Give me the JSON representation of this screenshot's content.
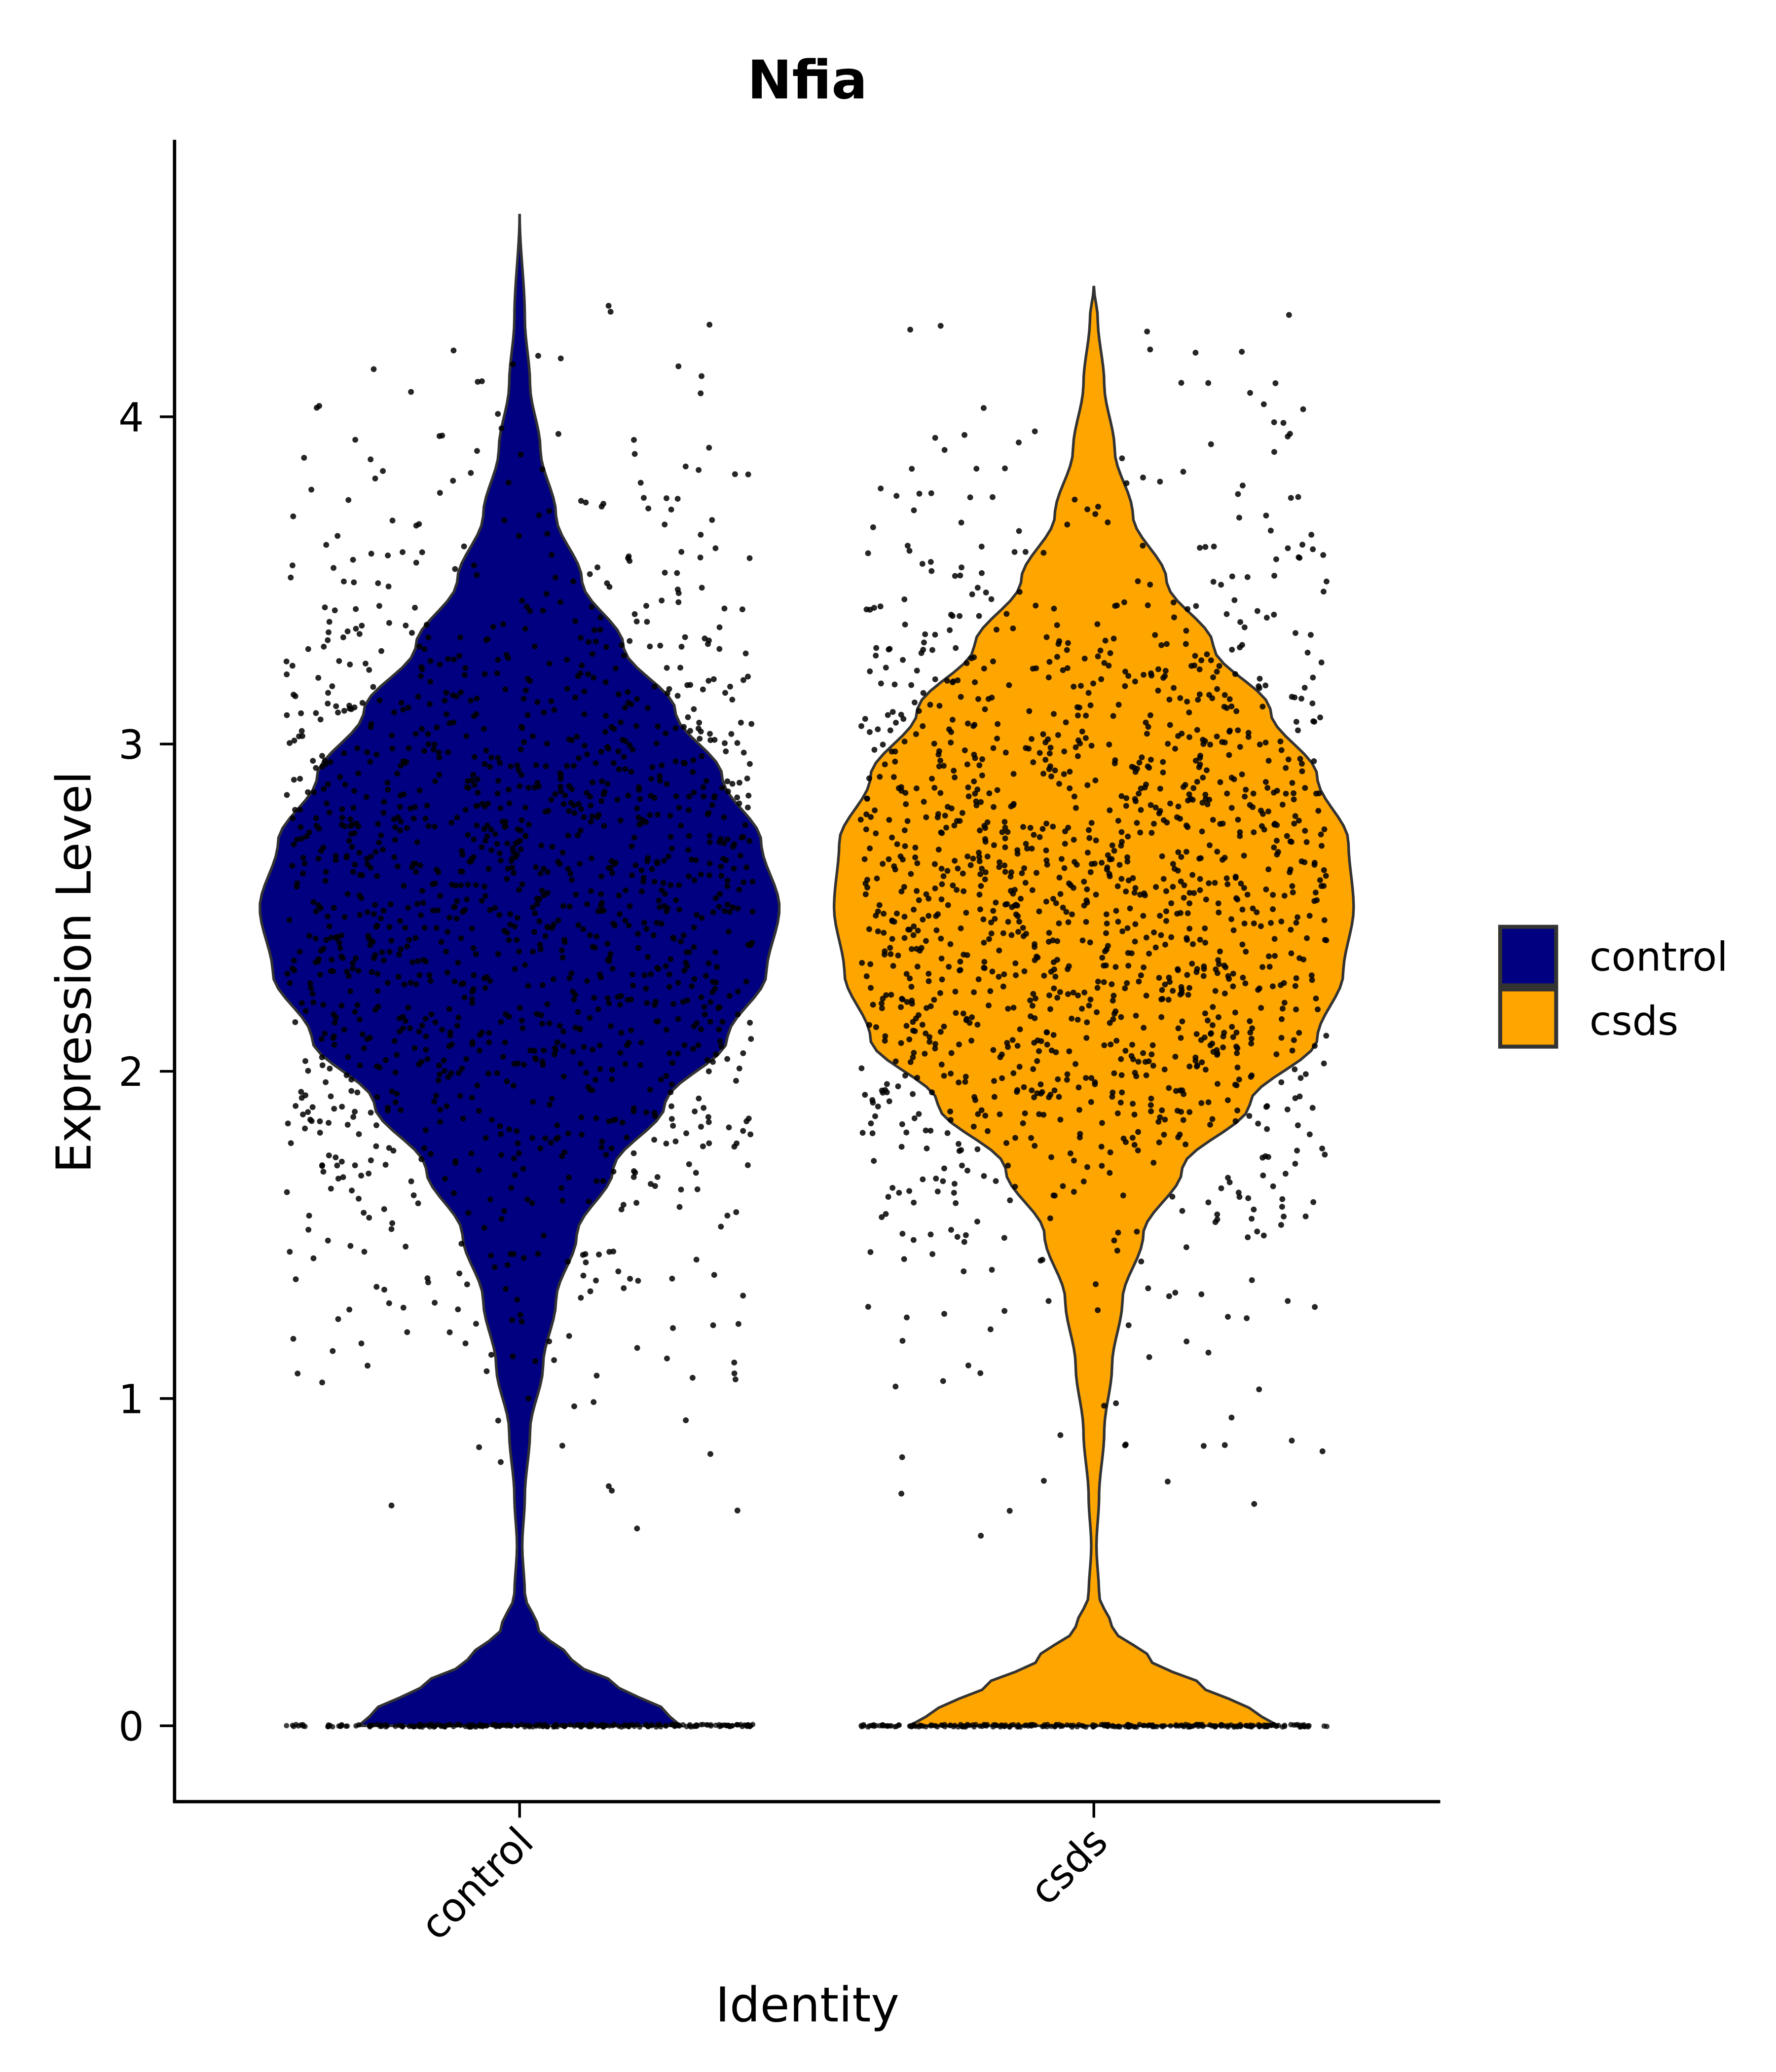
{
  "chart_data": {
    "type": "violin",
    "title": "Nfia",
    "xlabel": "Identity",
    "ylabel": "Expression Level",
    "ylim": [
      -0.23,
      4.85
    ],
    "yticks": [
      0,
      1,
      2,
      3,
      4
    ],
    "ytick_labels": [
      "0",
      "1",
      "2",
      "3",
      "4"
    ],
    "categories": [
      "control",
      "csds"
    ],
    "grid": false,
    "legend": {
      "position": "right",
      "entries": [
        {
          "label": "control",
          "color": "#000080"
        },
        {
          "label": "csds",
          "color": "#FFA500"
        }
      ]
    },
    "series": [
      {
        "name": "control",
        "color": "#000080",
        "max_value": 4.62,
        "median_peak": 2.5,
        "density_profile": [
          [
            0.0,
            0.62
          ],
          [
            0.05,
            0.55
          ],
          [
            0.12,
            0.38
          ],
          [
            0.2,
            0.2
          ],
          [
            0.3,
            0.07
          ],
          [
            0.4,
            0.02
          ],
          [
            0.55,
            0.01
          ],
          [
            0.7,
            0.02
          ],
          [
            0.9,
            0.04
          ],
          [
            1.1,
            0.09
          ],
          [
            1.3,
            0.14
          ],
          [
            1.5,
            0.22
          ],
          [
            1.7,
            0.36
          ],
          [
            1.9,
            0.56
          ],
          [
            2.1,
            0.8
          ],
          [
            2.3,
            0.95
          ],
          [
            2.5,
            1.0
          ],
          [
            2.7,
            0.93
          ],
          [
            2.9,
            0.78
          ],
          [
            3.1,
            0.6
          ],
          [
            3.3,
            0.4
          ],
          [
            3.5,
            0.24
          ],
          [
            3.7,
            0.14
          ],
          [
            3.9,
            0.08
          ],
          [
            4.1,
            0.04
          ],
          [
            4.3,
            0.02
          ],
          [
            4.62,
            0.0
          ]
        ],
        "jitter_points_approx": 1500
      },
      {
        "name": "csds",
        "color": "#FFA500",
        "max_value": 4.4,
        "median_peak": 2.6,
        "density_profile": [
          [
            0.0,
            0.71
          ],
          [
            0.05,
            0.6
          ],
          [
            0.12,
            0.42
          ],
          [
            0.2,
            0.22
          ],
          [
            0.3,
            0.07
          ],
          [
            0.4,
            0.02
          ],
          [
            0.55,
            0.01
          ],
          [
            0.7,
            0.02
          ],
          [
            0.9,
            0.04
          ],
          [
            1.1,
            0.07
          ],
          [
            1.3,
            0.11
          ],
          [
            1.5,
            0.19
          ],
          [
            1.7,
            0.34
          ],
          [
            1.9,
            0.6
          ],
          [
            2.1,
            0.86
          ],
          [
            2.3,
            0.96
          ],
          [
            2.5,
            1.0
          ],
          [
            2.7,
            0.98
          ],
          [
            2.9,
            0.86
          ],
          [
            3.1,
            0.68
          ],
          [
            3.3,
            0.46
          ],
          [
            3.5,
            0.28
          ],
          [
            3.7,
            0.15
          ],
          [
            3.9,
            0.08
          ],
          [
            4.1,
            0.04
          ],
          [
            4.3,
            0.015
          ],
          [
            4.4,
            0.0
          ]
        ],
        "jitter_points_approx": 1500
      }
    ]
  }
}
